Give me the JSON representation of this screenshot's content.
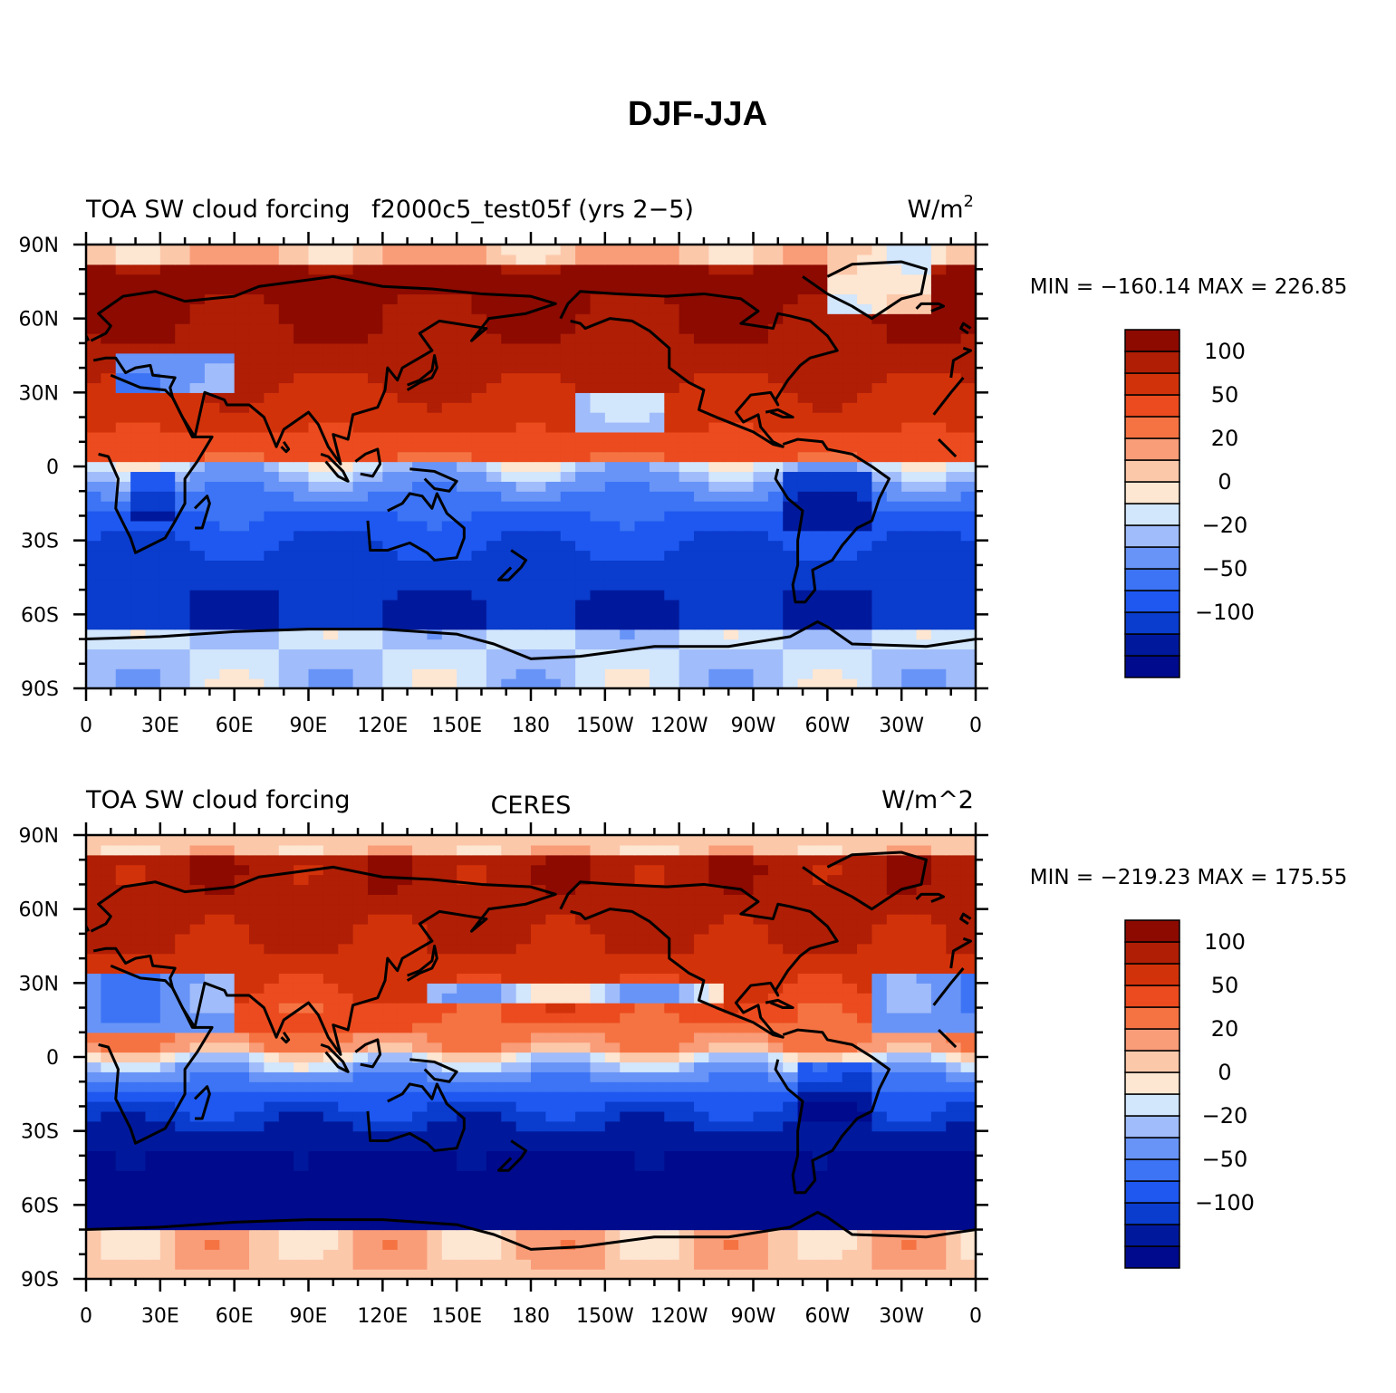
{
  "figure_title": "DJF-JJA",
  "colorbar": {
    "colors": [
      "#000a8c",
      "#00199c",
      "#0a3ccd",
      "#1e58f0",
      "#3c74f5",
      "#6894f7",
      "#a0bcfa",
      "#d2e6fc",
      "#fde6d2",
      "#fcc8aa",
      "#f99c78",
      "#f57342",
      "#eb4b1e",
      "#d2320a",
      "#af1e05",
      "#8c0a00"
    ],
    "labels": [
      {
        "text": "−100",
        "slot": 3
      },
      {
        "text": "−50",
        "slot": 5
      },
      {
        "text": "−20",
        "slot": 7
      },
      {
        "text": "0",
        "slot": 9
      },
      {
        "text": "20",
        "slot": 11
      },
      {
        "text": "50",
        "slot": 13
      },
      {
        "text": "100",
        "slot": 15
      }
    ]
  },
  "axes": {
    "lat_ticks": [
      "90S",
      "60S",
      "30S",
      "0",
      "30N",
      "60N",
      "90N"
    ],
    "lon_ticks": [
      "0",
      "30E",
      "60E",
      "90E",
      "120E",
      "150E",
      "180",
      "150W",
      "120W",
      "90W",
      "60W",
      "30W",
      "0"
    ]
  },
  "panels": [
    {
      "left_title": "TOA SW cloud forcing",
      "center_title": "f2000c5_test05f (yrs 2−5)",
      "unit_base": "W/m",
      "unit_sup": "2",
      "stats": "MIN = −160.14  MAX = 226.85"
    },
    {
      "left_title": "TOA SW cloud forcing",
      "center_title": "CERES",
      "unit_base": "W/m^2",
      "unit_sup": "",
      "stats": "MIN = −219.23  MAX = 175.55"
    }
  ],
  "chart_data": [
    {
      "type": "heatmap",
      "variable": "TOA SW cloud forcing",
      "source": "f2000c5_test05f (yrs 2−5)",
      "units": "W/m2",
      "min": -160.14,
      "max": 226.85,
      "color_levels": [
        -100,
        -50,
        -20,
        0,
        20,
        50,
        100
      ],
      "x_range": [
        0,
        360
      ],
      "y_range": [
        -90,
        90
      ]
    },
    {
      "type": "heatmap",
      "variable": "TOA SW cloud forcing",
      "source": "CERES",
      "units": "W/m^2",
      "min": -219.23,
      "max": 175.55,
      "color_levels": [
        -100,
        -50,
        -20,
        0,
        20,
        50,
        100
      ],
      "x_range": [
        0,
        360
      ],
      "y_range": [
        -90,
        90
      ]
    }
  ]
}
